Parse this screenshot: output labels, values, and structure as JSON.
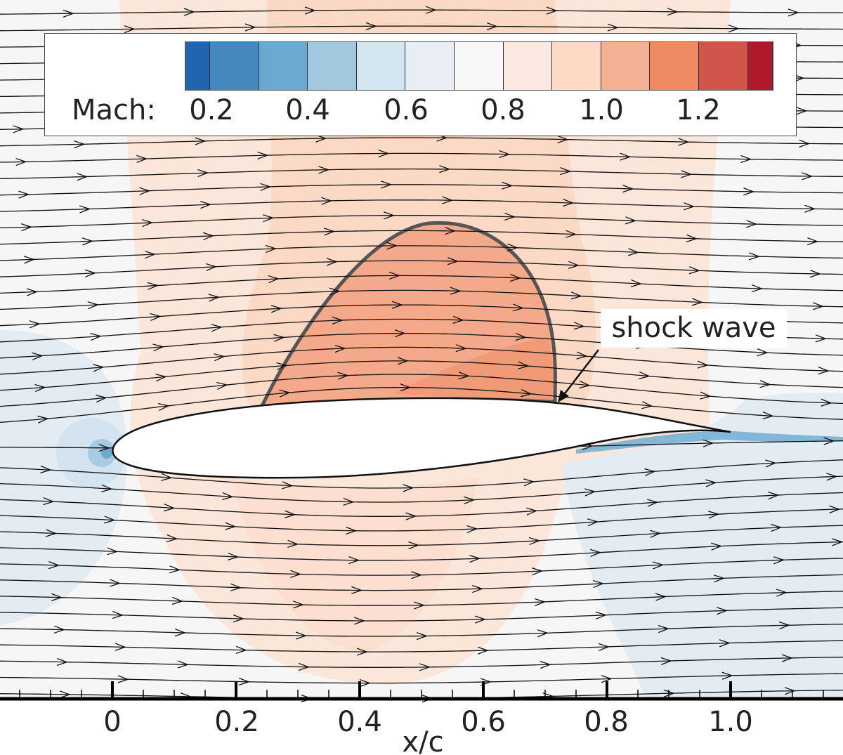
{
  "legend": {
    "title": "Mach:",
    "colorbar_colors": [
      "#2166ac",
      "#4389bf",
      "#6aaad1",
      "#a2c8e0",
      "#d2e5f0",
      "#e8eef4",
      "#f7f7f7",
      "#fbe8de",
      "#fddac5",
      "#f4b193",
      "#ef8a62",
      "#d1554a",
      "#b2182b"
    ],
    "labels": [
      "0.2",
      "0.4",
      "0.6",
      "0.8",
      "1.0",
      "1.2"
    ]
  },
  "annotation": {
    "text": "shock wave"
  },
  "axis": {
    "label": "x/c",
    "ticks": [
      "0",
      "0.2",
      "0.4",
      "0.6",
      "0.8",
      "1.0"
    ],
    "tick_values": [
      0,
      0.2,
      0.4,
      0.6,
      0.8,
      1.0
    ]
  },
  "colors": {
    "background": "#f6f6f6",
    "supersonic": "#f4a98a",
    "sonic_line": "#555555"
  }
}
